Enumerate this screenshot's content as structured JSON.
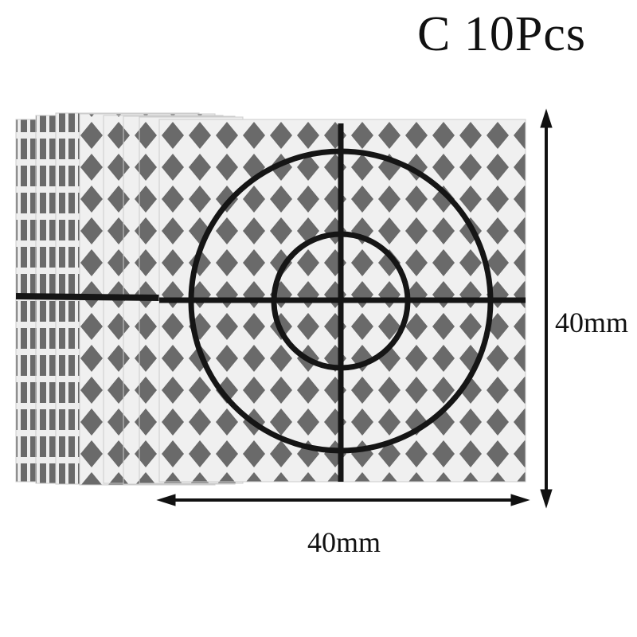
{
  "title": "C 10Pcs",
  "dimensions": {
    "height_label": "40mm",
    "width_label": "40mm"
  },
  "product": {
    "quantity": 10,
    "colors": {
      "sheet": "#6e6e6e",
      "grid": "#f2f2f2",
      "crosshair": "#151515"
    }
  }
}
